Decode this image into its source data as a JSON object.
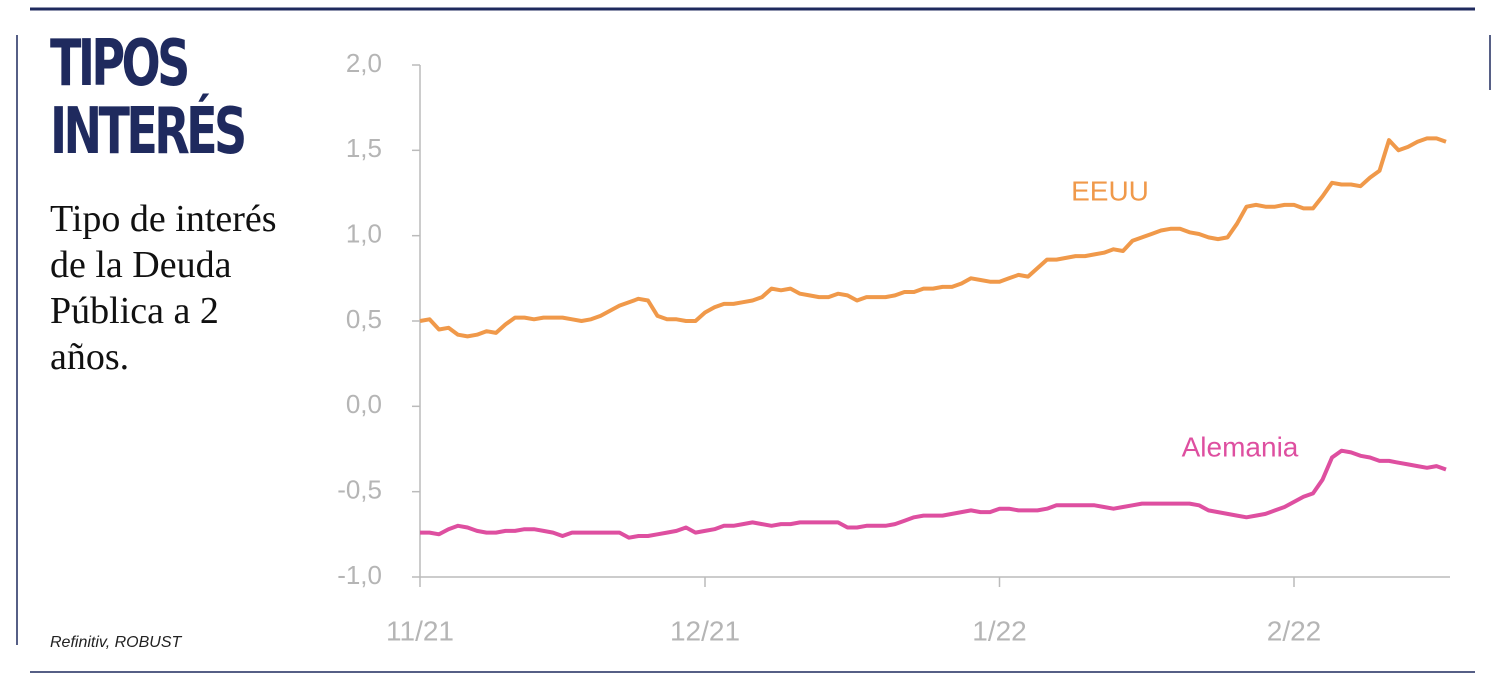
{
  "chart_data": {
    "type": "line",
    "title": "TIPOS INTERÉS",
    "subtitle": "Tipo de interés de la Deuda Pública a 2 años.",
    "source": "Refinitiv, ROBUST",
    "categories": [
      "11/21",
      null,
      null,
      null,
      null,
      null,
      null,
      null,
      null,
      null,
      null,
      null,
      null,
      null,
      null,
      null,
      null,
      null,
      null,
      null,
      null,
      null,
      null,
      null,
      null,
      null,
      null,
      null,
      null,
      null,
      "12/21",
      null,
      null,
      null,
      null,
      null,
      null,
      null,
      null,
      null,
      null,
      null,
      null,
      null,
      null,
      null,
      null,
      null,
      null,
      null,
      null,
      null,
      null,
      null,
      null,
      null,
      null,
      null,
      null,
      null,
      null,
      "1/22",
      null,
      null,
      null,
      null,
      null,
      null,
      null,
      null,
      null,
      null,
      null,
      null,
      null,
      null,
      null,
      null,
      null,
      null,
      null,
      null,
      null,
      null,
      null,
      null,
      null,
      null,
      null,
      null,
      null,
      null,
      "2/22",
      null,
      null,
      null,
      null,
      null,
      null,
      null,
      null,
      null,
      null,
      null,
      null,
      null,
      null,
      null,
      null
    ],
    "series": [
      {
        "name": "EEUU",
        "color": "#f0994a",
        "values": [
          0.5,
          0.51,
          0.45,
          0.46,
          0.42,
          0.41,
          0.42,
          0.44,
          0.43,
          0.48,
          0.52,
          0.52,
          0.51,
          0.52,
          0.52,
          0.52,
          0.51,
          0.5,
          0.51,
          0.53,
          0.56,
          0.59,
          0.61,
          0.63,
          0.62,
          0.53,
          0.51,
          0.51,
          0.5,
          0.5,
          0.55,
          0.58,
          0.6,
          0.6,
          0.61,
          0.62,
          0.64,
          0.69,
          0.68,
          0.69,
          0.66,
          0.65,
          0.64,
          0.64,
          0.66,
          0.65,
          0.62,
          0.64,
          0.64,
          0.64,
          0.65,
          0.67,
          0.67,
          0.69,
          0.69,
          0.7,
          0.7,
          0.72,
          0.75,
          0.74,
          0.73,
          0.73,
          0.75,
          0.77,
          0.76,
          0.81,
          0.86,
          0.86,
          0.87,
          0.88,
          0.88,
          0.89,
          0.9,
          0.92,
          0.91,
          0.97,
          0.99,
          1.01,
          1.03,
          1.04,
          1.04,
          1.02,
          1.01,
          0.99,
          0.98,
          0.99,
          1.07,
          1.17,
          1.18,
          1.17,
          1.17,
          1.18,
          1.18,
          1.16,
          1.16,
          1.23,
          1.31,
          1.3,
          1.3,
          1.29,
          1.34,
          1.38,
          1.56,
          1.5,
          1.52,
          1.55,
          1.57,
          1.57,
          1.55
        ]
      },
      {
        "name": "Alemania",
        "color": "#de4fa0",
        "values": [
          -0.74,
          -0.74,
          -0.75,
          -0.72,
          -0.7,
          -0.71,
          -0.73,
          -0.74,
          -0.74,
          -0.73,
          -0.73,
          -0.72,
          -0.72,
          -0.73,
          -0.74,
          -0.76,
          -0.74,
          -0.74,
          -0.74,
          -0.74,
          -0.74,
          -0.74,
          -0.77,
          -0.76,
          -0.76,
          -0.75,
          -0.74,
          -0.73,
          -0.71,
          -0.74,
          -0.73,
          -0.72,
          -0.7,
          -0.7,
          -0.69,
          -0.68,
          -0.69,
          -0.7,
          -0.69,
          -0.69,
          -0.68,
          -0.68,
          -0.68,
          -0.68,
          -0.68,
          -0.71,
          -0.71,
          -0.7,
          -0.7,
          -0.7,
          -0.69,
          -0.67,
          -0.65,
          -0.64,
          -0.64,
          -0.64,
          -0.63,
          -0.62,
          -0.61,
          -0.62,
          -0.62,
          -0.6,
          -0.6,
          -0.61,
          -0.61,
          -0.61,
          -0.6,
          -0.58,
          -0.58,
          -0.58,
          -0.58,
          -0.58,
          -0.59,
          -0.6,
          -0.59,
          -0.58,
          -0.57,
          -0.57,
          -0.57,
          -0.57,
          -0.57,
          -0.57,
          -0.58,
          -0.61,
          -0.62,
          -0.63,
          -0.64,
          -0.65,
          -0.64,
          -0.63,
          -0.61,
          -0.59,
          -0.56,
          -0.53,
          -0.51,
          -0.43,
          -0.3,
          -0.26,
          -0.27,
          -0.29,
          -0.3,
          -0.32,
          -0.32,
          -0.33,
          -0.34,
          -0.35,
          -0.36,
          -0.35,
          -0.37
        ]
      }
    ],
    "ylim": [
      -1.0,
      2.0
    ],
    "yticks": [
      {
        "value": -1.0,
        "label": "-1,0"
      },
      {
        "value": -0.5,
        "label": "-0,5"
      },
      {
        "value": 0.0,
        "label": "0,0"
      },
      {
        "value": 0.5,
        "label": "0,5"
      },
      {
        "value": 1.0,
        "label": "1,0"
      },
      {
        "value": 1.5,
        "label": "1,5"
      },
      {
        "value": 2.0,
        "label": "2,0"
      }
    ],
    "grid": false
  }
}
